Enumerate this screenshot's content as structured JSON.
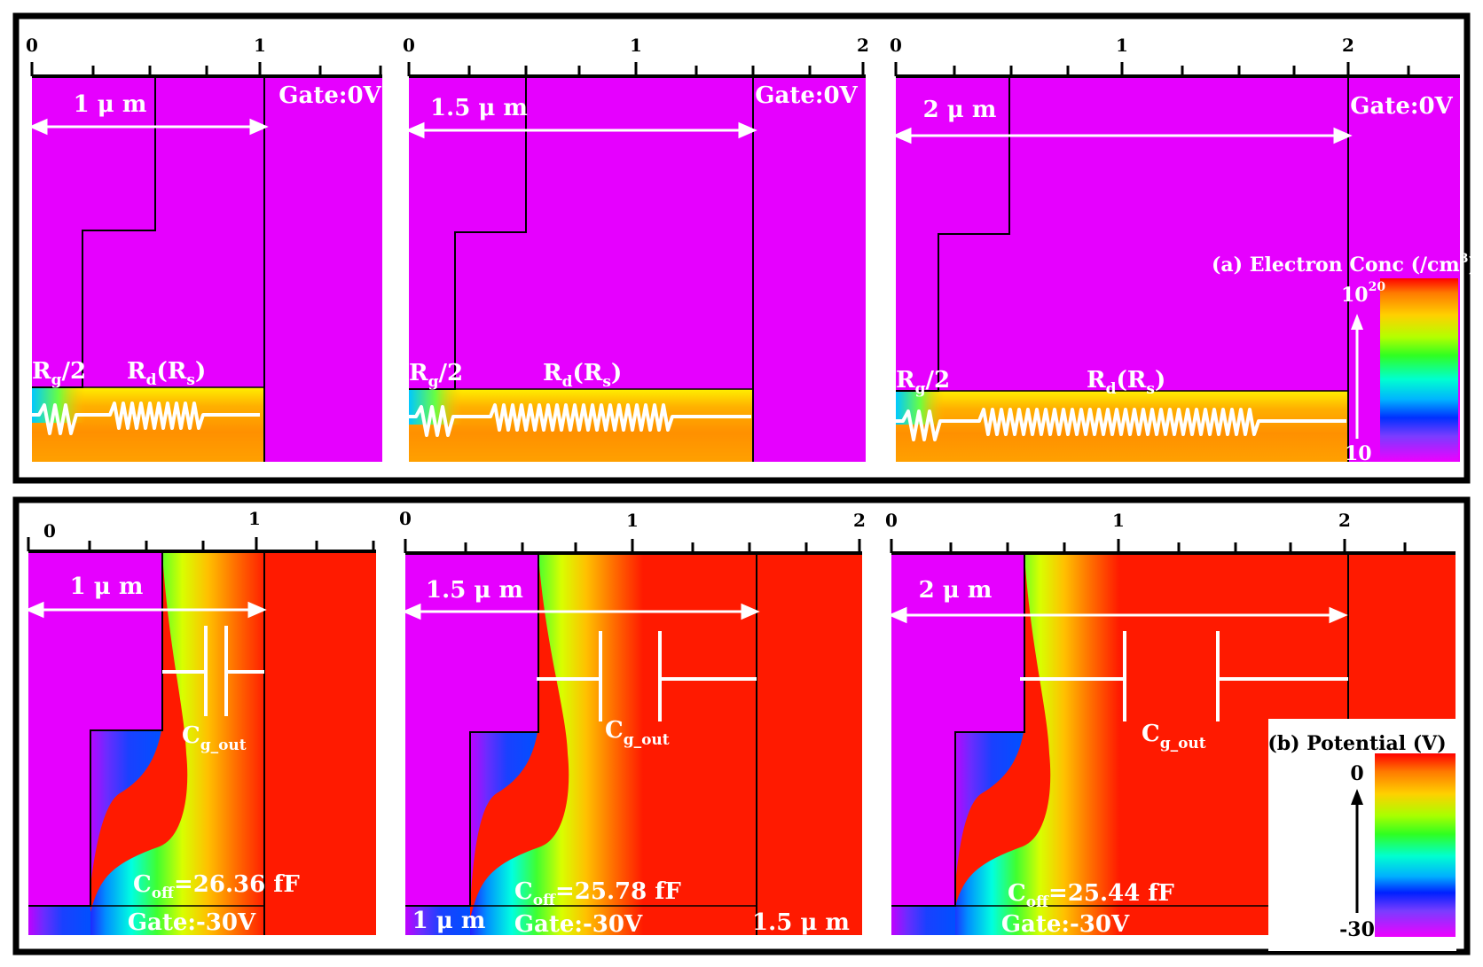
{
  "colors": {
    "magenta": "#e600ff",
    "red": "#ff1a00",
    "white": "#ffffff",
    "black": "#000000"
  },
  "panel_a": {
    "legend_title": "(a) Electron Conc (/cm",
    "legend_title_sup": "3",
    "legend_title_end": ")",
    "legend_top_base": "10",
    "legend_top_exp": "20",
    "legend_bottom": "10",
    "sims": [
      {
        "ticks": [
          "0",
          "1"
        ],
        "length_label": "1 μ m",
        "gate_label": "Gate:0V",
        "rg_label": "R",
        "rg_sub": "g",
        "rg_tail": "/2",
        "rd_label": "R",
        "rd_sub": "d",
        "rs_label": "(R",
        "rs_sub": "s",
        "rs_tail": ")"
      },
      {
        "ticks": [
          "0",
          "1",
          "2"
        ],
        "length_label": "1.5 μ m",
        "gate_label": "Gate:0V",
        "rg_label": "R",
        "rg_sub": "g",
        "rg_tail": "/2",
        "rd_label": "R",
        "rd_sub": "d",
        "rs_label": "(R",
        "rs_sub": "s",
        "rs_tail": ")"
      },
      {
        "ticks": [
          "0",
          "1",
          "2"
        ],
        "length_label": "2 μ m",
        "gate_label": "Gate:0V",
        "rg_label": "R",
        "rg_sub": "g",
        "rg_tail": "/2",
        "rd_label": "R",
        "rd_sub": "d",
        "rs_label": "(R",
        "rs_sub": "s",
        "rs_tail": ")"
      }
    ]
  },
  "panel_b": {
    "legend_title": "(b) Potential (V)",
    "legend_top": "0",
    "legend_bottom": "-30",
    "sims": [
      {
        "ticks": [
          "0",
          "1"
        ],
        "length_label": "1 μ m",
        "cg_label": "C",
        "cg_sub": "g_out",
        "coff_label": "C",
        "coff_sub": "off",
        "coff_value": "=26.36 fF",
        "gate_label": "Gate:-30V"
      },
      {
        "ticks": [
          "0",
          "1",
          "2"
        ],
        "length_label": "1.5 μ m",
        "cg_label": "C",
        "cg_sub": "g_out",
        "coff_label": "C",
        "coff_sub": "off",
        "coff_value": "=25.78 fF",
        "gate_label": "Gate:-30V",
        "bottom_left_label": "1 μ m",
        "bottom_right_label": "1.5 μ m"
      },
      {
        "ticks": [
          "0",
          "1",
          "2"
        ],
        "length_label": "2 μ m",
        "cg_label": "C",
        "cg_sub": "g_out",
        "coff_label": "C",
        "coff_sub": "off",
        "coff_value": "=25.44 fF",
        "gate_label": "Gate:-30V"
      }
    ]
  }
}
